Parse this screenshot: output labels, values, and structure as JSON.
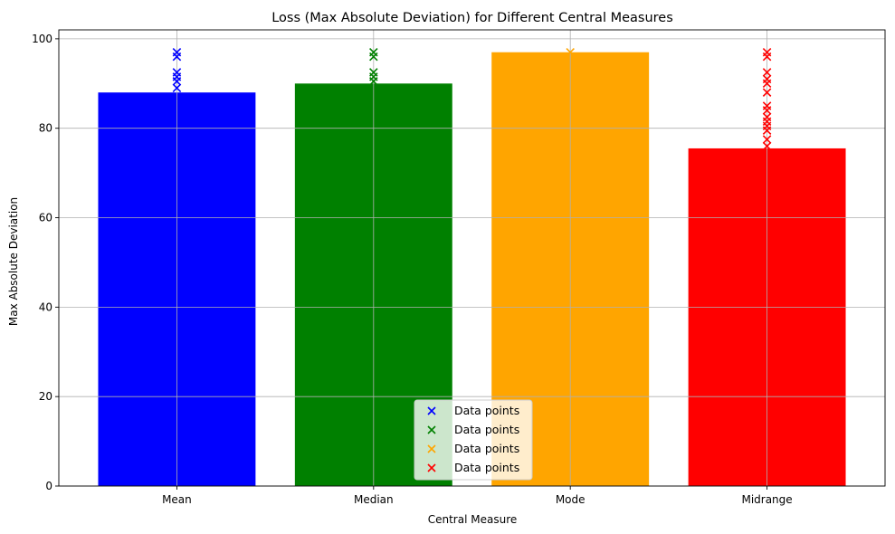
{
  "chart_data": {
    "type": "bar",
    "title": "Loss (Max Absolute Deviation) for Different Central Measures",
    "xlabel": "Central Measure",
    "ylabel": "Max Absolute Deviation",
    "categories": [
      "Mean",
      "Median",
      "Mode",
      "Midrange"
    ],
    "values": [
      88,
      90,
      97,
      75.5
    ],
    "colors": [
      "#0000ff",
      "#008000",
      "#ffa500",
      "#ff0000"
    ],
    "ylim": [
      0,
      102
    ],
    "yticks": [
      0,
      20,
      40,
      60,
      80,
      100
    ],
    "grid": true,
    "legend_position": "bottom-center",
    "scatter_series": [
      {
        "name": "Data points",
        "color": "#0000ff",
        "category": "Mean",
        "values": [
          89,
          90.5,
          91.5,
          92.5,
          96,
          97
        ]
      },
      {
        "name": "Data points",
        "color": "#008000",
        "category": "Median",
        "values": [
          90.5,
          91.5,
          92.5,
          96,
          97
        ]
      },
      {
        "name": "Data points",
        "color": "#ffa500",
        "category": "Mode",
        "values": [
          97
        ]
      },
      {
        "name": "Data points",
        "color": "#ff0000",
        "category": "Midrange",
        "values": [
          76,
          77.5,
          79.5,
          80.5,
          81.5,
          82.5,
          84,
          85,
          88,
          90,
          91,
          92.5,
          96,
          97
        ]
      }
    ]
  }
}
